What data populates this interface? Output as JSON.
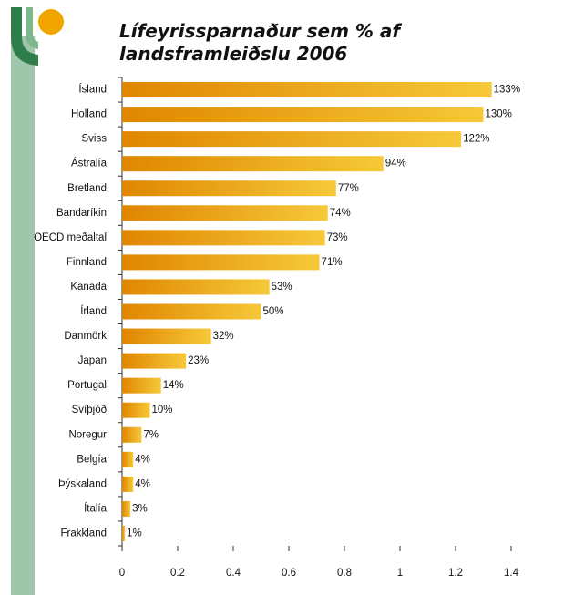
{
  "chart_data": {
    "type": "bar",
    "orientation": "horizontal",
    "title": [
      "Lífeyrissparnaður sem % af",
      "landsframleiðslu 2006"
    ],
    "categories": [
      "Ísland",
      "Holland",
      "Sviss",
      "Ástralía",
      "Bretland",
      "Bandaríkin",
      "OECD meðaltal",
      "Finnland",
      "Kanada",
      "Írland",
      "Danmörk",
      "Japan",
      "Portugal",
      "Svíþjóð",
      "Noregur",
      "Belgía",
      "Þýskaland",
      "Ítalía",
      "Frakkland"
    ],
    "values": [
      1.33,
      1.3,
      1.22,
      0.94,
      0.77,
      0.74,
      0.73,
      0.71,
      0.53,
      0.5,
      0.32,
      0.23,
      0.14,
      0.1,
      0.07,
      0.04,
      0.04,
      0.03,
      0.01
    ],
    "value_labels": [
      "133%",
      "130%",
      "122%",
      "94%",
      "77%",
      "74%",
      "73%",
      "71%",
      "53%",
      "50%",
      "32%",
      "23%",
      "14%",
      "10%",
      "7%",
      "4%",
      "4%",
      "3%",
      "1%"
    ],
    "gradient": [
      "#e08600",
      "#f6c93a"
    ],
    "xlim": [
      0,
      1.4
    ],
    "xticks": [
      0,
      0.2,
      0.4,
      0.6,
      0.8,
      1,
      1.2,
      1.4
    ],
    "grid": false
  }
}
